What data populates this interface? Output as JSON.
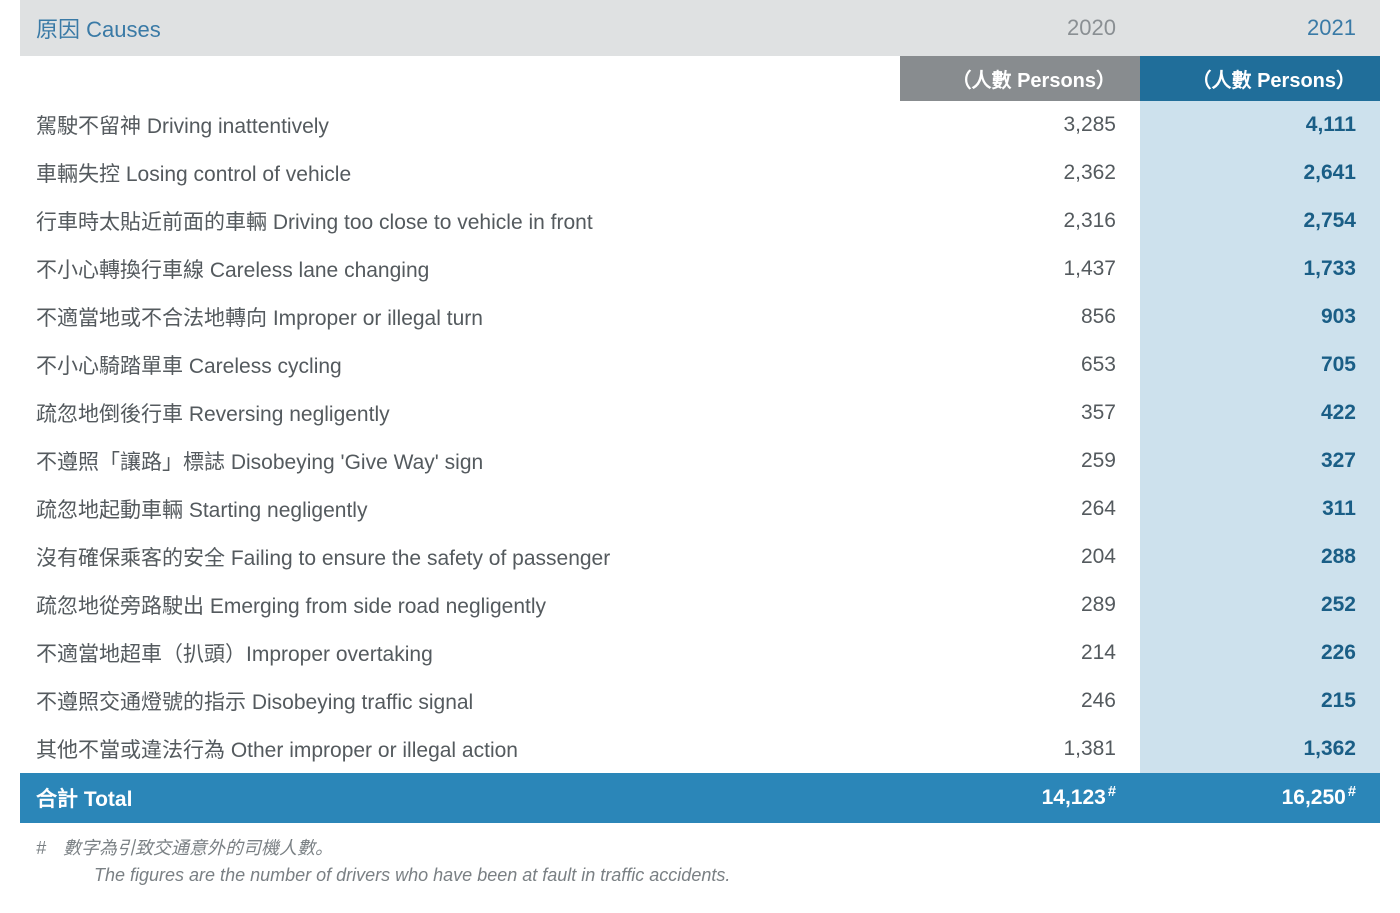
{
  "table": {
    "col_widths": [
      "880px",
      "240px",
      "240px"
    ],
    "header": {
      "causes_label": "原因 Causes",
      "years": [
        "2020",
        "2021"
      ],
      "unit_label": "（人數 Persons）",
      "causes_color": "#3a7aa6",
      "year_2020_color": "#8a8f93",
      "year_2021_color": "#3a7aa6",
      "row_year_bg": "#dfe1e2",
      "unit_2020_bg": "#888c8f",
      "unit_2021_bg": "#206e9a"
    },
    "body": {
      "col_2021_bg": "#cde1ed",
      "cause_color": "#545a5e",
      "val_2020_color": "#545a5e",
      "val_2021_color": "#1a5e86",
      "val_2021_weight": "700"
    },
    "rows": [
      {
        "cause": "駕駛不留神 Driving inattentively",
        "v2020": "3,285",
        "v2021": "4,111"
      },
      {
        "cause": "車輛失控 Losing control of vehicle",
        "v2020": "2,362",
        "v2021": "2,641"
      },
      {
        "cause": "行車時太貼近前面的車輛 Driving too close to vehicle in front",
        "v2020": "2,316",
        "v2021": "2,754"
      },
      {
        "cause": "不小心轉換行車線 Careless lane changing",
        "v2020": "1,437",
        "v2021": "1,733"
      },
      {
        "cause": "不適當地或不合法地轉向 Improper or illegal turn",
        "v2020": "856",
        "v2021": "903"
      },
      {
        "cause": "不小心騎踏單車 Careless cycling",
        "v2020": "653",
        "v2021": "705"
      },
      {
        "cause": "疏忽地倒後行車 Reversing negligently",
        "v2020": "357",
        "v2021": "422"
      },
      {
        "cause": "不遵照「讓路」標誌 Disobeying 'Give Way' sign",
        "v2020": "259",
        "v2021": "327"
      },
      {
        "cause": "疏忽地起動車輛 Starting negligently",
        "v2020": "264",
        "v2021": "311"
      },
      {
        "cause": "沒有確保乘客的安全 Failing to ensure the safety of passenger",
        "v2020": "204",
        "v2021": "288"
      },
      {
        "cause": "疏忽地從旁路駛出 Emerging from side road negligently",
        "v2020": "289",
        "v2021": "252"
      },
      {
        "cause": "不適當地超車（扒頭）Improper overtaking",
        "v2020": "214",
        "v2021": "226"
      },
      {
        "cause": "不遵照交通燈號的指示 Disobeying traffic signal",
        "v2020": "246",
        "v2021": "215"
      },
      {
        "cause": "其他不當或違法行為 Other improper or illegal action",
        "v2020": "1,381",
        "v2021": "1,362"
      }
    ],
    "total": {
      "label": "合計 Total",
      "v2020": "14,123",
      "v2021": "16,250",
      "sup": "#",
      "bg": "#2b86b8"
    }
  },
  "footnote": {
    "symbol": "#",
    "zh": "數字為引致交通意外的司機人數。",
    "en": "The figures are the number of drivers who have been at fault in traffic accidents.",
    "color": "#7a8084",
    "font_style": "italic"
  }
}
